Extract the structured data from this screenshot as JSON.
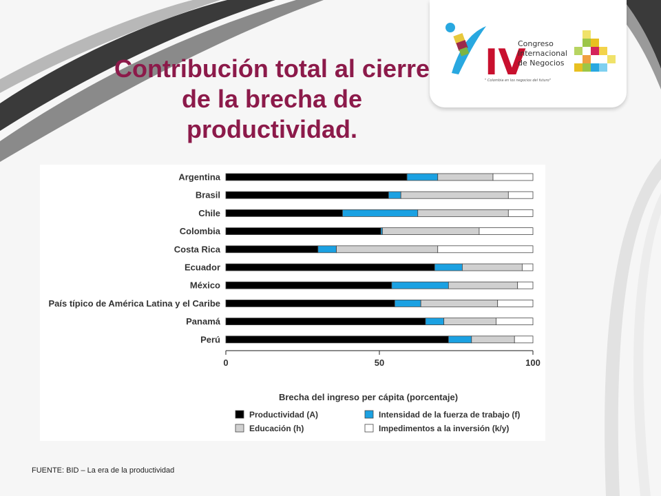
{
  "slide": {
    "title": "Contribución total al cierre de la brecha de productividad.",
    "source": "FUENTE:  BID – La era de la productividad"
  },
  "logo": {
    "numeral": "IV",
    "line1": "Congreso",
    "line2": "Internacional",
    "line3": "de Negocios",
    "tagline": "\" Colombia en los negocios del futuro\""
  },
  "chart_data": {
    "type": "bar",
    "orientation": "horizontal",
    "stacked": true,
    "categories": [
      "Argentina",
      "Brasil",
      "Chile",
      "Colombia",
      "Costa Rica",
      "Ecuador",
      "México",
      "País típico de América Latina y el Caribe",
      "Panamá",
      "Perú"
    ],
    "series": [
      {
        "name": "Productividad (A)",
        "color": "#000000",
        "values": [
          59,
          53,
          38,
          50.5,
          30,
          68,
          54,
          55,
          65,
          72.5
        ]
      },
      {
        "name": "Intensidad de la fuerza de trabajo (f)",
        "color": "#1ba1e2",
        "values": [
          10,
          4,
          24.5,
          0.5,
          6,
          9,
          18.5,
          8.5,
          6,
          7.5
        ]
      },
      {
        "name": "Educación (h)",
        "color": "#d0d0d0",
        "values": [
          18,
          35,
          29.5,
          31.5,
          33,
          19.5,
          22.5,
          25,
          17,
          14
        ]
      },
      {
        "name": "Impedimentos a la inversión (k/y)",
        "color": "#ffffff",
        "values": [
          13,
          8,
          8,
          17.5,
          31,
          3.5,
          5,
          11.5,
          12,
          6
        ]
      }
    ],
    "xlabel": "Brecha del ingreso per cápita (porcentaje)",
    "ylabel": "",
    "xlim": [
      0,
      100
    ],
    "xticks": [
      "0",
      "50",
      "100"
    ],
    "legend_position": "bottom",
    "grid": false
  }
}
